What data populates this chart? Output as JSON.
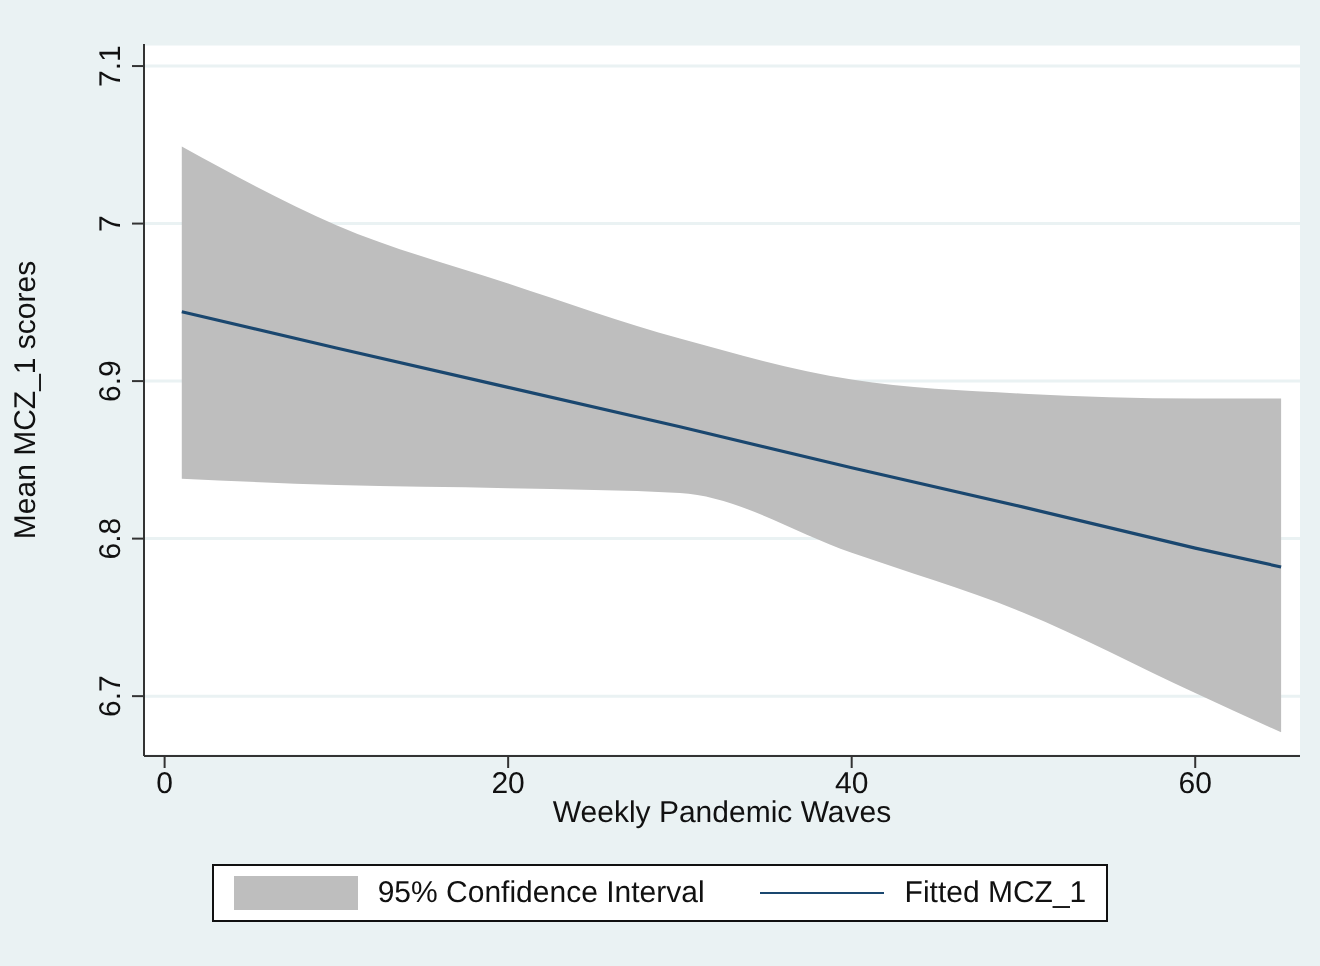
{
  "chart_data": {
    "type": "line",
    "xlabel": "Weekly Pandemic Waves",
    "ylabel": "Mean MCZ_1 scores",
    "x": [
      1,
      10,
      20,
      30,
      40,
      50,
      60,
      65
    ],
    "series": [
      {
        "name": "Fitted MCZ_1",
        "color": "#1a476f",
        "values": [
          6.944,
          6.921,
          6.896,
          6.871,
          6.845,
          6.82,
          6.794,
          6.782
        ],
        "lower": [
          6.838,
          6.834,
          6.832,
          6.829,
          6.791,
          6.753,
          6.702,
          6.677
        ],
        "upper": [
          7.049,
          6.999,
          6.962,
          6.927,
          6.901,
          6.892,
          6.889,
          6.889
        ]
      }
    ],
    "annotations": [
      "95% Confidence Interval"
    ],
    "xlim": [
      -1.2,
      66.1
    ],
    "xticks": [
      0,
      20,
      40,
      60
    ],
    "ylim": [
      6.662,
      7.114
    ],
    "yticks": [
      6.7,
      6.8,
      6.9,
      7,
      7.1
    ],
    "grid": "y",
    "legend": "bottom",
    "marker": "none",
    "line_style": "solid"
  }
}
